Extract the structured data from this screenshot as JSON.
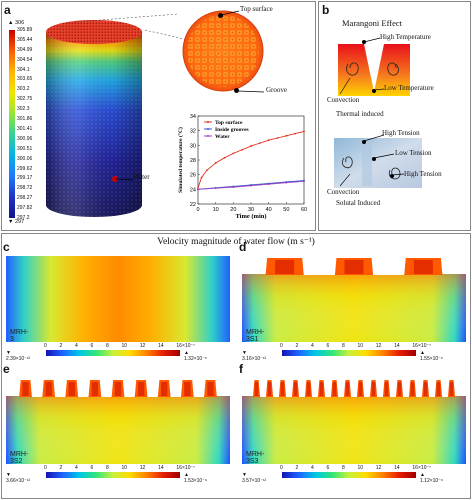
{
  "panels": {
    "a": "a",
    "b": "b",
    "c": "c",
    "d": "d",
    "e": "e",
    "f": "f"
  },
  "panel_a": {
    "scale_max": "▲ 306",
    "scale_min": "▼ 297",
    "scale_ticks": [
      "305.89",
      "305.44",
      "304.99",
      "304.54",
      "304.1",
      "303.65",
      "303.2",
      "302.75",
      "302.3",
      "301.86",
      "301.41",
      "300.96",
      "300.51",
      "300.06",
      "299.62",
      "299.17",
      "298.72",
      "298.27",
      "297.82",
      "297.2"
    ],
    "label_top_surface": "Top surface",
    "label_groove": "Groove",
    "label_water": "Water"
  },
  "panel_a_chart": {
    "chart_data": {
      "type": "line",
      "xlabel": "Time (min)",
      "ylabel": "Simulated temperature (°C)",
      "xlim": [
        0,
        60
      ],
      "ylim": [
        22,
        34
      ],
      "xticks": [
        "0",
        "10",
        "20",
        "30",
        "40",
        "50",
        "60"
      ],
      "yticks": [
        "22",
        "24",
        "26",
        "28",
        "30",
        "32",
        "34"
      ],
      "series": [
        {
          "name": "Top surface",
          "color": "#e0301e",
          "x": [
            0,
            2,
            5,
            10,
            15,
            20,
            25,
            30,
            35,
            40,
            45,
            50,
            55,
            60
          ],
          "y": [
            24.2,
            25.6,
            26.6,
            27.6,
            28.3,
            28.9,
            29.4,
            29.9,
            30.3,
            30.7,
            31.0,
            31.3,
            31.6,
            31.9
          ]
        },
        {
          "name": "Inside grooves",
          "color": "#3355cc",
          "x": [
            0,
            10,
            20,
            30,
            40,
            50,
            60
          ],
          "y": [
            24.0,
            24.2,
            24.4,
            24.6,
            24.8,
            25.0,
            25.2
          ]
        },
        {
          "name": "Water",
          "color": "#a040c0",
          "x": [
            0,
            10,
            20,
            30,
            40,
            50,
            60
          ],
          "y": [
            24.0,
            24.15,
            24.3,
            24.5,
            24.7,
            24.9,
            25.1
          ]
        }
      ]
    }
  },
  "panel_b": {
    "title": "Marangoni Effect",
    "high_temperature": "High Temperature",
    "low_temperature": "Low Temperature",
    "convection1": "Convection",
    "thermal": "Thermal induced",
    "high_tension_top": "High Tension",
    "low_tension": "Low Tension",
    "high_tension_bottom": "High Tension",
    "convection2": "Convection",
    "solutal": "Solutal Induced"
  },
  "velocity_title": "Velocity magnitude of water flow (m s⁻¹)",
  "fields": [
    {
      "id": "c",
      "label": "MRH-3",
      "min": "▼ 2.39×10⁻¹²",
      "max": "▲ 1.32×10⁻⁶",
      "grooves": 0
    },
    {
      "id": "d",
      "label": "MRH-3S1",
      "min": "▼ 3.16×10⁻¹²",
      "max": "▲ 1.55×10⁻⁶",
      "grooves": 3
    },
    {
      "id": "e",
      "label": "MRH-3S2",
      "min": "▼ 3.66×10⁻¹²",
      "max": "▲ 1.53×10⁻⁶",
      "grooves": 9
    },
    {
      "id": "f",
      "label": "MRH-3S3",
      "min": "▼ 3.57×10⁻¹²",
      "max": "▲ 1.12×10⁻⁶",
      "grooves": 16
    }
  ],
  "velocity_ticks": [
    "0",
    "2",
    "4",
    "6",
    "8",
    "10",
    "12",
    "14",
    "16"
  ],
  "velocity_exp": "×10⁻⁷"
}
